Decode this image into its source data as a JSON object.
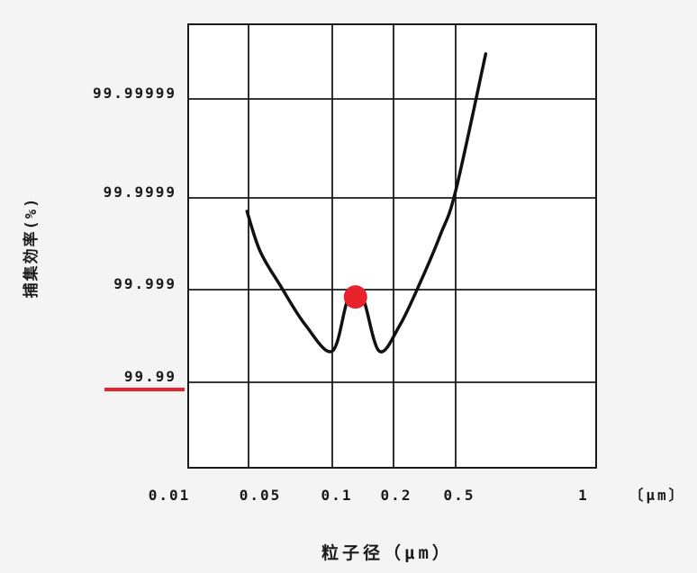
{
  "chart_data": {
    "type": "line",
    "xlabel": "粒子径（μm）",
    "ylabel": "捕集効率(%)",
    "x_unit_label": "〔μm〕",
    "x_ticks": [
      {
        "value": 0.01,
        "label": "0.01"
      },
      {
        "value": 0.05,
        "label": "0.05"
      },
      {
        "value": 0.1,
        "label": "0.1"
      },
      {
        "value": 0.2,
        "label": "0.2"
      },
      {
        "value": 0.5,
        "label": "0.5"
      },
      {
        "value": 1,
        "label": "1"
      }
    ],
    "y_ticks": [
      {
        "value": 99.99,
        "label": "99.99"
      },
      {
        "value": 99.999,
        "label": "99.999"
      },
      {
        "value": 99.9999,
        "label": "99.9999"
      },
      {
        "value": 99.99999,
        "label": "99.99999"
      }
    ],
    "series": [
      {
        "color": "#111111",
        "points": [
          {
            "x": 0.048,
            "y": 99.99986
          },
          {
            "x": 0.055,
            "y": 99.99962
          },
          {
            "x": 0.065,
            "y": 99.9991
          },
          {
            "x": 0.08,
            "y": 99.9976
          },
          {
            "x": 0.1,
            "y": 99.9954
          },
          {
            "x": 0.12,
            "y": 99.99878
          },
          {
            "x": 0.14,
            "y": 99.99885
          },
          {
            "x": 0.17,
            "y": 99.9954
          },
          {
            "x": 0.22,
            "y": 99.9976
          },
          {
            "x": 0.3,
            "y": 99.9992
          },
          {
            "x": 0.4,
            "y": 99.99975
          },
          {
            "x": 0.5,
            "y": 99.999915
          },
          {
            "x": 0.58,
            "y": 99.9999965
          }
        ]
      }
    ],
    "highlight_point": {
      "x": 0.13,
      "y": 99.9988,
      "color": "#e8232b"
    },
    "highlight_tick": {
      "label": "99.99",
      "color": "#e8232b"
    }
  }
}
